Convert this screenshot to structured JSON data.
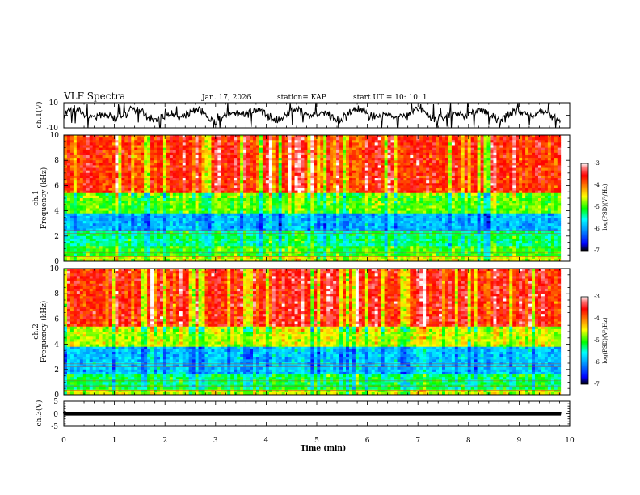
{
  "header": {
    "title": "VLF Spectra",
    "date": "Jan. 17, 2026",
    "station": "station= KAP",
    "start": "start  UT  =    10: 10: 1"
  },
  "colors": {
    "background": "#ffffff",
    "axis": "#000000",
    "colormap": [
      "#000000",
      "#0000ff",
      "#00a0ff",
      "#00ffff",
      "#00ff00",
      "#ffff00",
      "#ff8000",
      "#ff0000",
      "#ff8080",
      "#ffffff"
    ]
  },
  "chart_data": [
    {
      "type": "line",
      "name": "ch1-waveform",
      "ylabel": "ch.1(V)",
      "ylim": [
        -10,
        10
      ],
      "y_ticks": [
        "10",
        "-10"
      ],
      "xlim": [
        0,
        10
      ],
      "data_end_min": 9.82,
      "typical_range_V": [
        -6,
        7
      ]
    },
    {
      "type": "heatmap",
      "name": "ch1-spectrogram",
      "xlim": [
        0,
        10
      ],
      "ylim": [
        0,
        10
      ],
      "ylabel": [
        "ch.1",
        "Frequency  (kHz)"
      ],
      "y_ticks": [
        "0",
        "2",
        "4",
        "6",
        "8",
        "10"
      ],
      "z_range": [
        -7,
        -3
      ],
      "data_end_min": 9.82,
      "colorbar": {
        "label": "log(PSD)(V²/Hz)",
        "ticks": [
          "-3",
          "-4",
          "-5",
          "-6",
          "-7"
        ]
      },
      "bands": [
        {
          "from_kHz": 0,
          "to_kHz": 0.4,
          "level": -4.6
        },
        {
          "from_kHz": 0.4,
          "to_kHz": 1.2,
          "level": -5.0
        },
        {
          "from_kHz": 1.2,
          "to_kHz": 2.4,
          "level": -5.3
        },
        {
          "from_kHz": 2.4,
          "to_kHz": 3.8,
          "level": -5.9
        },
        {
          "from_kHz": 3.8,
          "to_kHz": 5.5,
          "level": -4.9
        },
        {
          "from_kHz": 5.5,
          "to_kHz": 10,
          "level": -3.7
        }
      ]
    },
    {
      "type": "heatmap",
      "name": "ch2-spectrogram",
      "xlim": [
        0,
        10
      ],
      "ylim": [
        0,
        10
      ],
      "ylabel": [
        "ch.2",
        "Frequency  (kHz)"
      ],
      "y_ticks": [
        "0",
        "2",
        "4",
        "6",
        "8",
        "10"
      ],
      "z_range": [
        -7,
        -3
      ],
      "data_end_min": 9.82,
      "colorbar": {
        "label": "log(PSD)(V²/Hz)",
        "ticks": [
          "-3",
          "-4",
          "-5",
          "-6",
          "-7"
        ]
      },
      "bands": [
        {
          "from_kHz": 0,
          "to_kHz": 0.4,
          "level": -4.6
        },
        {
          "from_kHz": 0.4,
          "to_kHz": 1.6,
          "level": -5.2
        },
        {
          "from_kHz": 1.6,
          "to_kHz": 3.8,
          "level": -5.8
        },
        {
          "from_kHz": 3.8,
          "to_kHz": 5.5,
          "level": -4.6
        },
        {
          "from_kHz": 5.5,
          "to_kHz": 10,
          "level": -3.6
        }
      ]
    },
    {
      "type": "line",
      "name": "ch3-waveform",
      "ylabel": "ch.3(V)",
      "ylim": [
        -5,
        5
      ],
      "y_ticks": [
        "5",
        "0",
        "-5"
      ],
      "xlim": [
        0,
        10
      ],
      "data_end_min": 9.82,
      "typical_range_V": [
        -0.6,
        0.6
      ]
    }
  ],
  "xaxis": {
    "label": "Time  (min)",
    "ticks": [
      "0",
      "1",
      "2",
      "3",
      "4",
      "5",
      "6",
      "7",
      "8",
      "9",
      "10"
    ]
  }
}
